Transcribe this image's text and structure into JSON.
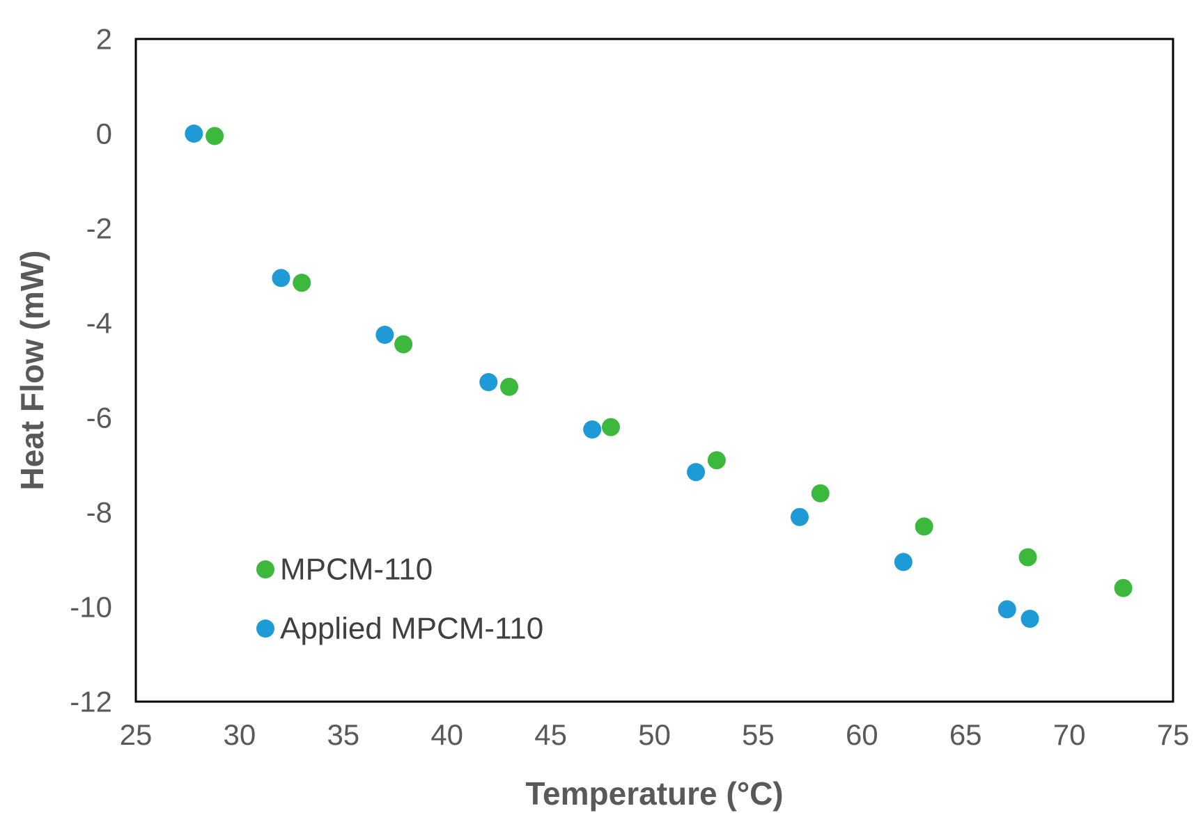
{
  "chart_data": {
    "type": "scatter",
    "title": "",
    "xlabel": "Temperature (°C)",
    "ylabel": "Heat Flow (mW)",
    "xlim": [
      25,
      75
    ],
    "ylim": [
      -12,
      2
    ],
    "xticks": [
      25,
      30,
      35,
      40,
      45,
      50,
      55,
      60,
      65,
      70,
      75
    ],
    "yticks": [
      2,
      0,
      -2,
      -4,
      -6,
      -8,
      -10,
      -12
    ],
    "xtick_labels": [
      "25",
      "30",
      "35",
      "40",
      "45",
      "50",
      "55",
      "60",
      "65",
      "70",
      "75"
    ],
    "ytick_labels": [
      "2",
      "0",
      "-2",
      "-4",
      "-6",
      "-8",
      "-10",
      "-12"
    ],
    "grid": false,
    "legend_position": "bottom-left",
    "series": [
      {
        "name": "MPCM-110",
        "color": "#3cb83c",
        "x": [
          28.8,
          33.0,
          37.9,
          43.0,
          47.9,
          53.0,
          58.0,
          63.0,
          68.0,
          72.6
        ],
        "y": [
          -0.05,
          -3.15,
          -4.45,
          -5.35,
          -6.2,
          -6.9,
          -7.6,
          -8.3,
          -8.95,
          -9.6
        ]
      },
      {
        "name": "Applied MPCM-110",
        "color": "#1e9ad6",
        "x": [
          27.8,
          32.0,
          37.0,
          42.0,
          47.0,
          52.0,
          57.0,
          62.0,
          67.0,
          68.1
        ],
        "y": [
          0.0,
          -3.05,
          -4.25,
          -5.25,
          -6.25,
          -7.15,
          -8.1,
          -9.05,
          -10.05,
          -10.25
        ]
      }
    ]
  }
}
